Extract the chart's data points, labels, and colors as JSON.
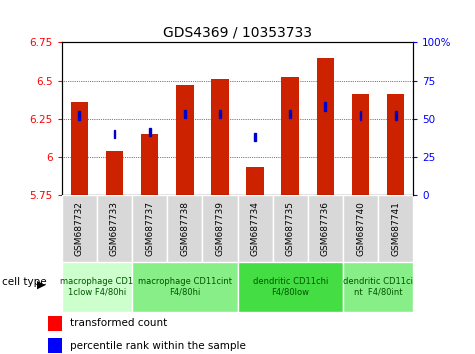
{
  "title": "GDS4369 / 10353733",
  "samples": [
    "GSM687732",
    "GSM687733",
    "GSM687737",
    "GSM687738",
    "GSM687739",
    "GSM687734",
    "GSM687735",
    "GSM687736",
    "GSM687740",
    "GSM687741"
  ],
  "transformed_count": [
    6.36,
    6.04,
    6.15,
    6.47,
    6.51,
    5.93,
    6.52,
    6.65,
    6.41,
    6.41
  ],
  "percentile_rank": [
    52,
    40,
    41,
    53,
    53,
    38,
    53,
    58,
    52,
    52
  ],
  "ylim_left": [
    5.75,
    6.75
  ],
  "ylim_right": [
    0,
    100
  ],
  "yticks_left": [
    5.75,
    6.0,
    6.25,
    6.5,
    6.75
  ],
  "yticks_right": [
    0,
    25,
    50,
    75,
    100
  ],
  "ytick_labels_left": [
    "5.75",
    "6",
    "6.25",
    "6.5",
    "6.75"
  ],
  "ytick_labels_right": [
    "0",
    "25",
    "50",
    "75",
    "100%"
  ],
  "bar_color": "#cc2200",
  "square_color": "#0000cc",
  "cell_groups": [
    {
      "label": "macrophage CD1\n1clow F4/80hi",
      "start": 0,
      "end": 2,
      "color": "#ccffcc"
    },
    {
      "label": "macrophage CD11cint\nF4/80hi",
      "start": 2,
      "end": 5,
      "color": "#88ee88"
    },
    {
      "label": "dendritic CD11chi\nF4/80low",
      "start": 5,
      "end": 8,
      "color": "#44dd44"
    },
    {
      "label": "dendritic CD11ci\nnt  F4/80int",
      "start": 8,
      "end": 10,
      "color": "#88ee88"
    }
  ],
  "legend_red_label": "transformed count",
  "legend_blue_label": "percentile rank within the sample",
  "cell_type_label": "cell type"
}
